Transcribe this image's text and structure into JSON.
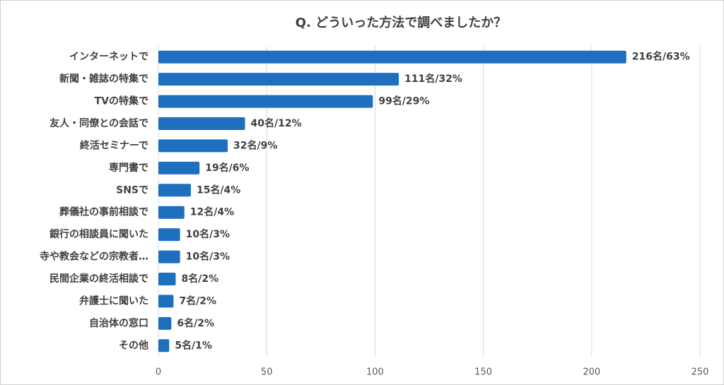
{
  "chart_data": {
    "type": "bar",
    "orientation": "horizontal",
    "title": "Q. どういった方法で調べましたか？",
    "categories": [
      "インターネットで",
      "新聞・雑誌の特集で",
      "TVの特集で",
      "友人・同僚との会話で",
      "終活セミナーで",
      "専門書で",
      "SNSで",
      "葬儀社の事前相談で",
      "銀行の相談員に聞いた",
      "寺や教会などの宗教者…",
      "民間企業の終活相談で",
      "弁護士に聞いた",
      "自治体の窓口",
      "その他"
    ],
    "values": [
      216,
      111,
      99,
      40,
      32,
      19,
      15,
      12,
      10,
      10,
      8,
      7,
      6,
      5
    ],
    "value_labels": [
      "216名/63%",
      "111名/32%",
      "99名/29%",
      "40名/12%",
      "32名/9%",
      "19名/6%",
      "15名/4%",
      "12名/4%",
      "10名/3%",
      "10名/3%",
      "8名/2%",
      "7名/2%",
      "6名/2%",
      "5名/1%"
    ],
    "color": "#1f6fbf",
    "xlim": [
      0,
      250
    ],
    "xticks": [
      0,
      50,
      100,
      150,
      200,
      250
    ],
    "grid": true
  }
}
